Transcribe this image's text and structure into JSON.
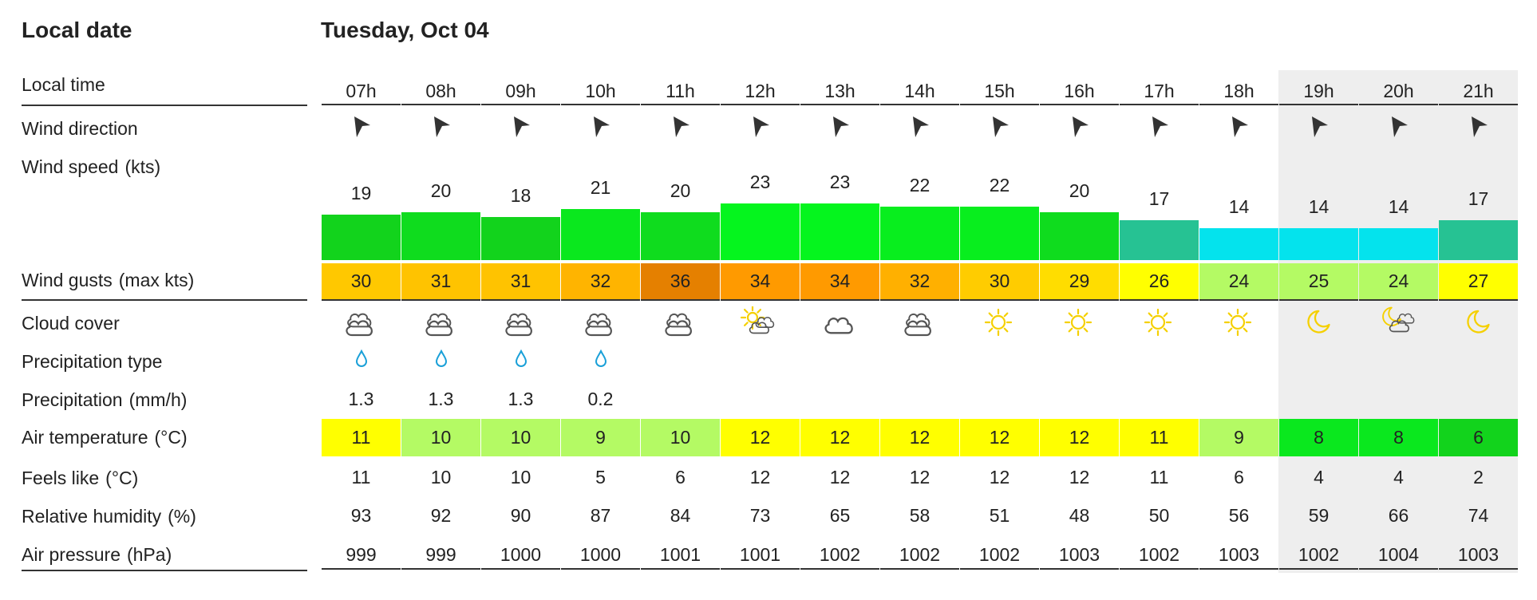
{
  "header": {
    "local_date_label": "Local date",
    "day": "Tuesday, Oct 04"
  },
  "labels": {
    "local_time": "Local time",
    "wind_direction": "Wind direction",
    "wind_speed": "Wind speed",
    "wind_speed_unit": "(kts)",
    "wind_gusts": "Wind gusts",
    "wind_gusts_unit": "(max kts)",
    "cloud_cover": "Cloud cover",
    "precip_type": "Precipitation type",
    "precip": "Precipitation",
    "precip_unit": "(mm/h)",
    "air_temp": "Air temperature",
    "air_temp_unit": "(°C)",
    "feels_like": "Feels like",
    "feels_like_unit": "(°C)",
    "humidity": "Relative humidity",
    "humidity_unit": "(%)",
    "pressure": "Air pressure",
    "pressure_unit": "(hPa)"
  },
  "hours": [
    "07h",
    "08h",
    "09h",
    "10h",
    "11h",
    "12h",
    "13h",
    "14h",
    "15h",
    "16h",
    "17h",
    "18h",
    "19h",
    "20h",
    "21h"
  ],
  "night": [
    false,
    false,
    false,
    false,
    false,
    false,
    false,
    false,
    false,
    false,
    false,
    false,
    true,
    true,
    true
  ],
  "wind_speed": [
    "19",
    "20",
    "18",
    "21",
    "20",
    "23",
    "23",
    "22",
    "22",
    "20",
    "17",
    "14",
    "14",
    "14",
    "17"
  ],
  "wind_speed_colors": [
    "#12d31c",
    "#0fdc1e",
    "#12d31c",
    "#0ae81e",
    "#0fdc1e",
    "#05f51e",
    "#05f51e",
    "#08ee1e",
    "#08ee1e",
    "#0fdc1e",
    "#26c293",
    "#04e3ed",
    "#04e3ed",
    "#04e3ed",
    "#26c293"
  ],
  "wind_gusts": [
    "30",
    "31",
    "31",
    "32",
    "36",
    "34",
    "34",
    "32",
    "30",
    "29",
    "26",
    "24",
    "25",
    "24",
    "27"
  ],
  "wind_gusts_colors": [
    "#ffc800",
    "#ffc300",
    "#ffc300",
    "#ffb400",
    "#e58000",
    "#ff9a00",
    "#ff9a00",
    "#ffb000",
    "#ffcc00",
    "#ffdd00",
    "#ffff00",
    "#b4fa64",
    "#b4fa64",
    "#b4fa64",
    "#ffff00"
  ],
  "cloud_icons": [
    "cloud-rain-icon",
    "cloud-rain-icon",
    "cloud-rain-icon",
    "cloud-rain-icon",
    "cloud-heavy-icon",
    "sun-cloud-icon",
    "cloud-icon",
    "cloud-heavy-icon",
    "sun-icon",
    "sun-icon",
    "sun-icon",
    "sun-icon",
    "moon-icon",
    "moon-cloud-icon",
    "moon-icon"
  ],
  "precip_type": [
    "rain",
    "rain",
    "rain",
    "rain",
    "",
    "",
    "",
    "",
    "",
    "",
    "",
    "",
    "",
    "",
    ""
  ],
  "precip": [
    "1.3",
    "1.3",
    "1.3",
    "0.2",
    "",
    "",
    "",
    "",
    "",
    "",
    "",
    "",
    "",
    "",
    ""
  ],
  "air_temp": [
    "11",
    "10",
    "10",
    "9",
    "10",
    "12",
    "12",
    "12",
    "12",
    "12",
    "11",
    "9",
    "8",
    "8",
    "6"
  ],
  "air_temp_colors": [
    "#ffff00",
    "#b4fa64",
    "#b4fa64",
    "#b4fa64",
    "#b4fa64",
    "#ffff00",
    "#ffff00",
    "#ffff00",
    "#ffff00",
    "#ffff00",
    "#ffff00",
    "#b4fa64",
    "#0ae81e",
    "#0ae81e",
    "#12d31c"
  ],
  "feels_like": [
    "11",
    "10",
    "10",
    "5",
    "6",
    "12",
    "12",
    "12",
    "12",
    "12",
    "11",
    "6",
    "4",
    "4",
    "2"
  ],
  "humidity": [
    "93",
    "92",
    "90",
    "87",
    "84",
    "73",
    "65",
    "58",
    "51",
    "48",
    "50",
    "56",
    "59",
    "66",
    "74"
  ],
  "pressure": [
    "999",
    "999",
    "1000",
    "1000",
    "1001",
    "1001",
    "1002",
    "1002",
    "1002",
    "1003",
    "1002",
    "1003",
    "1002",
    "1004",
    "1003"
  ],
  "icon_colors": {
    "arrow": "#333333",
    "cloud": "#555555",
    "sun": "#f5d000",
    "rain": "#1aa0d8"
  }
}
